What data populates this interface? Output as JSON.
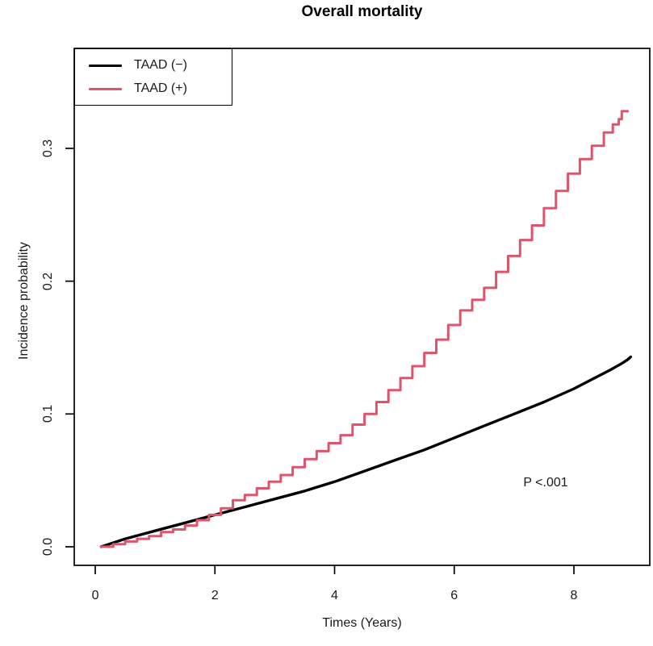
{
  "chart_data": {
    "type": "line",
    "title": "Overall mortality",
    "xlabel": "Times (Years)",
    "ylabel": "Incidence probability",
    "xlim": [
      -0.351,
      9.268
    ],
    "ylim": [
      -0.014,
      0.3753
    ],
    "x_ticks": [
      0,
      2,
      4,
      6,
      8
    ],
    "x_tick_labels": [
      "0",
      "2",
      "4",
      "6",
      "8"
    ],
    "y_ticks": [
      0,
      0.1,
      0.2,
      0.3
    ],
    "y_tick_labels": [
      "0.0",
      "0.1",
      "0.2",
      "0.3"
    ],
    "grid": false,
    "legend_position": "topleft",
    "annotation": "P <.001",
    "legend": [
      {
        "label": "TAAD (−)",
        "color": "#000000"
      },
      {
        "label": "TAAD (+)",
        "color": "#DF536B"
      }
    ],
    "series": [
      {
        "name": "TAAD (−)",
        "color": "#000000",
        "step": false,
        "x": [
          0.1,
          0.5,
          1.0,
          1.5,
          2.0,
          2.5,
          3.0,
          3.5,
          4.0,
          4.5,
          5.0,
          5.5,
          6.0,
          6.5,
          7.0,
          7.5,
          8.0,
          8.3,
          8.6,
          8.8,
          8.9,
          8.95
        ],
        "y": [
          0.0,
          0.006,
          0.012,
          0.018,
          0.024,
          0.03,
          0.036,
          0.042,
          0.049,
          0.057,
          0.065,
          0.073,
          0.082,
          0.091,
          0.1,
          0.109,
          0.119,
          0.126,
          0.133,
          0.138,
          0.141,
          0.143
        ]
      },
      {
        "name": "TAAD (+)",
        "color": "#DF536B",
        "step": true,
        "x": [
          0.1,
          0.3,
          0.5,
          0.7,
          0.9,
          1.1,
          1.3,
          1.5,
          1.7,
          1.9,
          2.1,
          2.3,
          2.5,
          2.7,
          2.9,
          3.1,
          3.3,
          3.5,
          3.7,
          3.9,
          4.1,
          4.3,
          4.5,
          4.7,
          4.9,
          5.1,
          5.3,
          5.5,
          5.7,
          5.9,
          6.1,
          6.3,
          6.5,
          6.7,
          6.9,
          7.1,
          7.3,
          7.5,
          7.7,
          7.9,
          8.1,
          8.3,
          8.5,
          8.65,
          8.75,
          8.8,
          8.9
        ],
        "y": [
          0.0,
          0.002,
          0.004,
          0.006,
          0.008,
          0.011,
          0.013,
          0.016,
          0.02,
          0.024,
          0.029,
          0.035,
          0.039,
          0.044,
          0.049,
          0.054,
          0.06,
          0.066,
          0.072,
          0.078,
          0.084,
          0.092,
          0.1,
          0.109,
          0.118,
          0.127,
          0.136,
          0.146,
          0.156,
          0.167,
          0.178,
          0.186,
          0.195,
          0.207,
          0.219,
          0.231,
          0.242,
          0.255,
          0.268,
          0.281,
          0.292,
          0.302,
          0.312,
          0.318,
          0.322,
          0.328,
          0.328
        ]
      }
    ]
  }
}
